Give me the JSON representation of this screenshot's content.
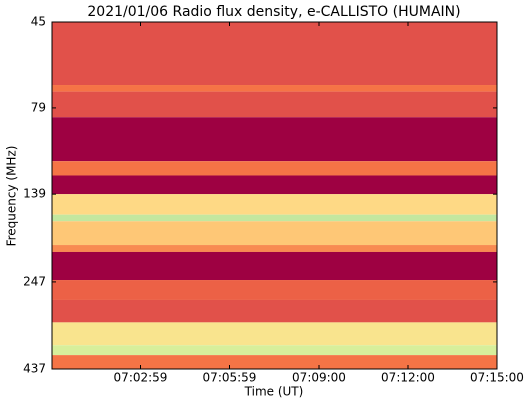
{
  "chart_data": {
    "type": "heatmap",
    "title": "2021/01/06  Radio flux density, e-CALLISTO (HUMAIN)",
    "xlabel": "Time (UT)",
    "ylabel": "Frequency (MHz)",
    "xlim": [
      "07:00:00",
      "07:15:00"
    ],
    "xticks": [
      "07:02:59",
      "07:05:59",
      "07:09:00",
      "07:12:00",
      "07:15:00"
    ],
    "ylim": [
      45,
      437
    ],
    "yticks": [
      45,
      79,
      139,
      247,
      437
    ],
    "ylog": true,
    "y_inverted": true,
    "y_edges": [
      45,
      68,
      71,
      84,
      112,
      123,
      139,
      159,
      166,
      194,
      203,
      244,
      278,
      322,
      374,
      399,
      437
    ],
    "values": [
      0.2,
      0.3,
      0.2,
      0.0,
      0.3,
      0.0,
      0.55,
      0.8,
      0.5,
      0.35,
      0.0,
      0.25,
      0.2,
      0.6,
      0.75,
      0.3
    ],
    "colormap": [
      "#9e0142",
      "#d53e4f",
      "#f46d43",
      "#fdae61",
      "#fee08b",
      "#e6f598",
      "#abdda4",
      "#66c2a5"
    ]
  }
}
